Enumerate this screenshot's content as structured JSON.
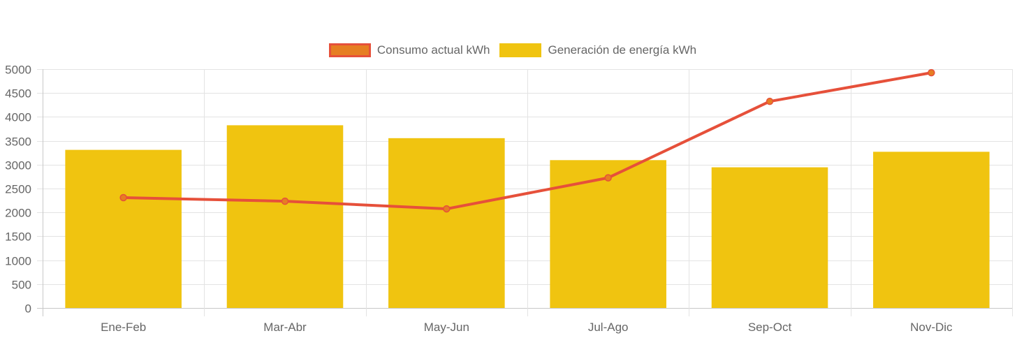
{
  "chart_data": {
    "type": "bar",
    "categories": [
      "Ene-Feb",
      "Mar-Abr",
      "May-Jun",
      "Jul-Ago",
      "Sep-Oct",
      "Nov-Dic"
    ],
    "series": [
      {
        "name": "Consumo actual kWh",
        "type": "line",
        "values": [
          2310,
          2235,
          2075,
          2725,
          4325,
          4925
        ],
        "color": "#e6503a",
        "point_fill": "#e67e22"
      },
      {
        "name": "Generación de energía kWh",
        "type": "bar",
        "values": [
          3310,
          3825,
          3555,
          3095,
          2945,
          3270
        ],
        "color": "#f0c410"
      }
    ],
    "ylim": [
      0,
      5000
    ],
    "yticks": [
      0,
      500,
      1000,
      1500,
      2000,
      2500,
      3000,
      3500,
      4000,
      4500,
      5000
    ],
    "grid": true,
    "legend_position": "top"
  }
}
